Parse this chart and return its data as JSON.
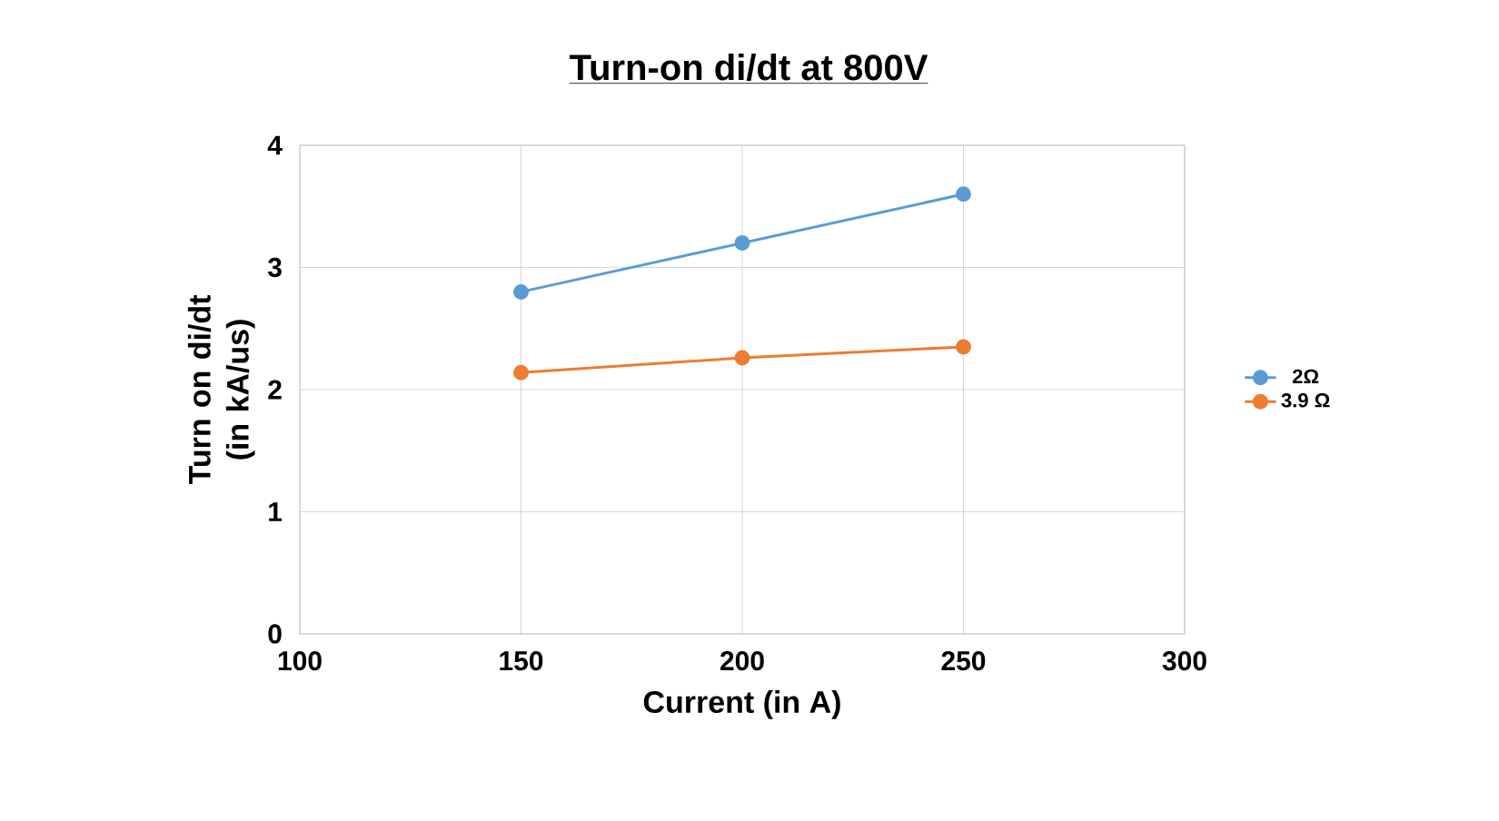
{
  "chart_data": {
    "type": "line",
    "title": "Turn-on di/dt at  800V",
    "xlabel": "Current (in A)",
    "ylabel": "Turn on di/dt\n(in kA/us)",
    "x": [
      150,
      200,
      250
    ],
    "series": [
      {
        "name": "2Ω",
        "color": "#5b9bd5",
        "values": [
          2.8,
          3.2,
          3.6
        ]
      },
      {
        "name": "3.9 Ω",
        "color": "#ed7d31",
        "values": [
          2.14,
          2.26,
          2.35
        ]
      }
    ],
    "xlim": [
      100,
      300
    ],
    "xticks": [
      100,
      150,
      200,
      250,
      300
    ],
    "ylim": [
      0,
      4
    ],
    "yticks": [
      0,
      1,
      2,
      3,
      4
    ],
    "grid": true,
    "legend": "right",
    "marker": "circle",
    "line_style": "solid"
  }
}
